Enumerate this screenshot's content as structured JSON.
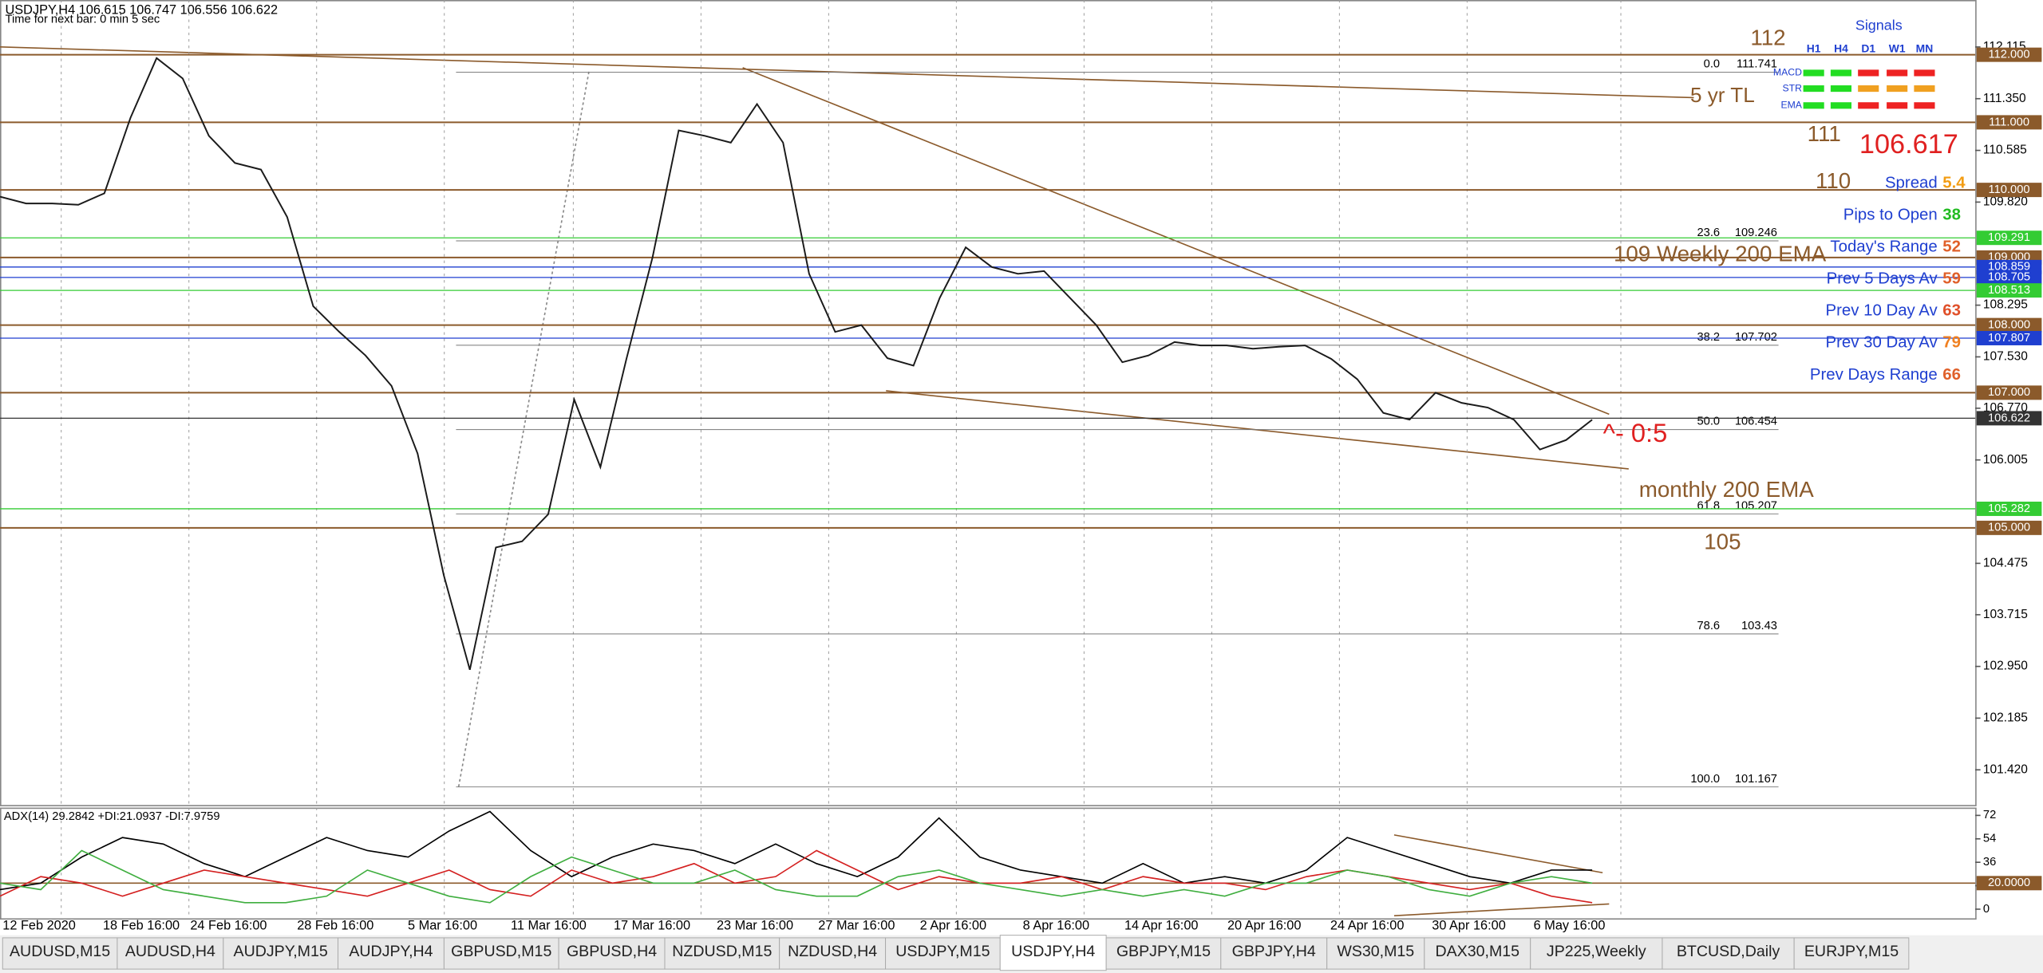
{
  "header": {
    "symbol_line": "USDJPY,H4  106.615 106.747 106.556 106.622",
    "timer": "Time for next bar: 0 min 5 sec"
  },
  "chart_data": [
    {
      "type": "line",
      "ylim": [
        100.9,
        112.81
      ],
      "yticks": [
        112.115,
        {
          "value": 111.35,
          "label": "111.350"
        },
        110.585,
        {
          "value": 109.82,
          "label": "109.820"
        },
        108.295,
        {
          "value": 107.53,
          "label": "107.530"
        },
        {
          "value": 106.77,
          "label": "106.770"
        },
        106.005,
        104.475,
        103.715,
        {
          "value": 102.95,
          "label": "102.950"
        },
        102.185,
        {
          "value": 101.42,
          "label": "101.420"
        }
      ],
      "x_labels": [
        "12 Feb 2020",
        "18 Feb 16:00",
        "24 Feb 16:00",
        "28 Feb 16:00",
        "5 Mar 16:00",
        "11 Mar 16:00",
        "17 Mar 16:00",
        "23 Mar 16:00",
        "27 Mar 16:00",
        "2 Apr 16:00",
        "8 Apr 16:00",
        "14 Apr 16:00",
        "20 Apr 16:00",
        "24 Apr 16:00",
        "30 Apr 16:00",
        "6 May 16:00"
      ],
      "series": [
        {
          "color": "#1a1a1a",
          "values": [
            109.9,
            109.8,
            109.8,
            109.78,
            109.95,
            111.07,
            111.95,
            111.65,
            110.8,
            110.4,
            110.3,
            109.6,
            108.28,
            107.9,
            107.55,
            107.1,
            106.1,
            104.3,
            102.9,
            104.71,
            104.8,
            105.2,
            106.9,
            105.9,
            107.5,
            109.0,
            110.88,
            110.8,
            110.7,
            111.27,
            110.7,
            108.76,
            107.9,
            108.0,
            107.51,
            107.4,
            108.4,
            109.15,
            108.86,
            108.76,
            108.8,
            108.4,
            108.0,
            107.45,
            107.55,
            107.75,
            107.7,
            107.7,
            107.65,
            107.68,
            107.7,
            107.5,
            107.2,
            106.7,
            106.6,
            107.0,
            106.85,
            106.78,
            106.6,
            106.16,
            106.3,
            106.6
          ]
        }
      ],
      "levels": [
        {
          "value": 112,
          "label": "112.000",
          "color": "#8b5a2b"
        },
        {
          "value": 111,
          "label": "111.000",
          "color": "#8b5a2b"
        },
        {
          "value": 110,
          "label": "110.000",
          "color": "#8b5a2b"
        },
        {
          "value": 109.291,
          "label": "109.291",
          "color": "#33cc33"
        },
        {
          "value": 109,
          "label": "109.000",
          "color": "#8b5a2b"
        },
        {
          "value": 108.859,
          "label": "108.859",
          "color": "#1f3fd0"
        },
        {
          "value": 108.705,
          "label": "108.705",
          "color": "#1f3fd0"
        },
        {
          "value": 108.513,
          "label": "108.513",
          "color": "#33cc33"
        },
        {
          "value": 108,
          "label": "108.000",
          "color": "#8b5a2b"
        },
        {
          "value": 107.807,
          "label": "107.807",
          "color": "#1f3fd0"
        },
        {
          "value": 107,
          "label": "107.000",
          "color": "#8b5a2b"
        },
        {
          "value": 106.622,
          "label": "106.622",
          "color": "#333333"
        },
        {
          "value": 105.282,
          "label": "105.282",
          "color": "#33cc33"
        },
        {
          "value": 105,
          "label": "105.000",
          "color": "#8b5a2b"
        }
      ],
      "fib": [
        {
          "ratio": "0.0",
          "price": 111.741
        },
        {
          "ratio": "23.6",
          "price": 109.246
        },
        {
          "ratio": "38.2",
          "price": 107.702
        },
        {
          "ratio": "50.0",
          "price": 106.454
        },
        {
          "ratio": "61.8",
          "price": 105.207
        },
        {
          "ratio": "78.6",
          "price": 103.43
        },
        {
          "ratio": "100.0",
          "price": 101.167
        }
      ]
    },
    {
      "type": "line",
      "title": "ADX(14) 29.2842 +DI:21.0937 -DI:7.9759",
      "ylim": [
        -7,
        78
      ],
      "yticks": [
        72,
        54,
        36,
        18,
        0
      ],
      "levels": [
        {
          "value": 20,
          "label": "20.0000",
          "color": "#8b5a2b"
        }
      ],
      "series": [
        {
          "color": "#000000",
          "values": [
            15,
            20,
            40,
            55,
            50,
            35,
            25,
            40,
            55,
            45,
            40,
            60,
            75,
            45,
            25,
            40,
            50,
            45,
            35,
            50,
            35,
            25,
            40,
            70,
            40,
            30,
            25,
            20,
            35,
            20,
            25,
            20,
            30,
            55,
            45,
            35,
            25,
            20,
            30,
            30
          ]
        },
        {
          "color": "#d42020",
          "values": [
            10,
            25,
            20,
            10,
            20,
            30,
            25,
            20,
            15,
            10,
            20,
            30,
            15,
            10,
            30,
            20,
            25,
            35,
            20,
            25,
            45,
            30,
            15,
            25,
            20,
            20,
            25,
            15,
            25,
            20,
            20,
            15,
            25,
            30,
            25,
            20,
            15,
            20,
            10,
            5
          ]
        },
        {
          "color": "#3fae3f",
          "values": [
            20,
            15,
            45,
            30,
            15,
            10,
            5,
            5,
            10,
            30,
            20,
            10,
            5,
            25,
            40,
            30,
            20,
            20,
            30,
            15,
            10,
            10,
            25,
            30,
            20,
            15,
            10,
            15,
            10,
            15,
            10,
            20,
            20,
            30,
            25,
            15,
            10,
            20,
            25,
            20
          ]
        }
      ]
    }
  ],
  "annotations": [
    {
      "text": "112",
      "color": "#8b5a2b"
    },
    {
      "text": "5 yr TL",
      "color": "#8b5a2b"
    },
    {
      "text": "111",
      "color": "#8b5a2b"
    },
    {
      "text": "106.617",
      "color": "#e02020"
    },
    {
      "text": "110",
      "color": "#8b5a2b"
    },
    {
      "text": "109  Weekly 200 EMA",
      "color": "#8b5a2b"
    },
    {
      "text": "^- 0:5",
      "color": "#e02020"
    },
    {
      "text": "monthly 200 EMA",
      "color": "#8b5a2b"
    },
    {
      "text": "105",
      "color": "#8b5a2b"
    }
  ],
  "signals": {
    "title": "Signals",
    "columns": [
      "H1",
      "H4",
      "D1",
      "W1",
      "MN"
    ],
    "rows": [
      {
        "name": "MACD",
        "colors": [
          "#22dd22",
          "#22dd22",
          "#ee2222",
          "#ee2222",
          "#ee2222"
        ]
      },
      {
        "name": "STR",
        "colors": [
          "#22dd22",
          "#22dd22",
          "#f0a020",
          "#f0a020",
          "#f0a020"
        ]
      },
      {
        "name": "EMA",
        "colors": [
          "#22dd22",
          "#22dd22",
          "#ee2222",
          "#ee2222",
          "#ee2222"
        ]
      }
    ]
  },
  "stats": [
    {
      "label": "Spread",
      "value": 5.4,
      "color": "#f39c12"
    },
    {
      "label": "Pips to Open",
      "value": 38,
      "color": "#22bb22"
    },
    {
      "label": "Today's Range",
      "value": 52,
      "color": "#e0602a"
    },
    {
      "label": "Prev 5 Days Av",
      "value": 59,
      "color": "#e0602a"
    },
    {
      "label": "Prev 10 Day Av",
      "value": 63,
      "color": "#e0502a"
    },
    {
      "label": "Prev 30 Day Av",
      "value": 79,
      "color": "#f08020"
    },
    {
      "label": "Prev Days Range",
      "value": 66,
      "color": "#e0602a"
    }
  ],
  "tabs": [
    "AUDUSD,M15",
    "AUDUSD,H4",
    "AUDJPY,M15",
    "AUDJPY,H4",
    "GBPUSD,M15",
    "GBPUSD,H4",
    "NZDUSD,M15",
    "NZDUSD,H4",
    "USDJPY,M15",
    "USDJPY,H4",
    "GBPJPY,M15",
    "GBPJPY,H4",
    "WS30,M15",
    "DAX30,M15",
    "JP225,Weekly",
    "BTCUSD,Daily",
    "EURJPY,M15"
  ],
  "active_tab": 9
}
